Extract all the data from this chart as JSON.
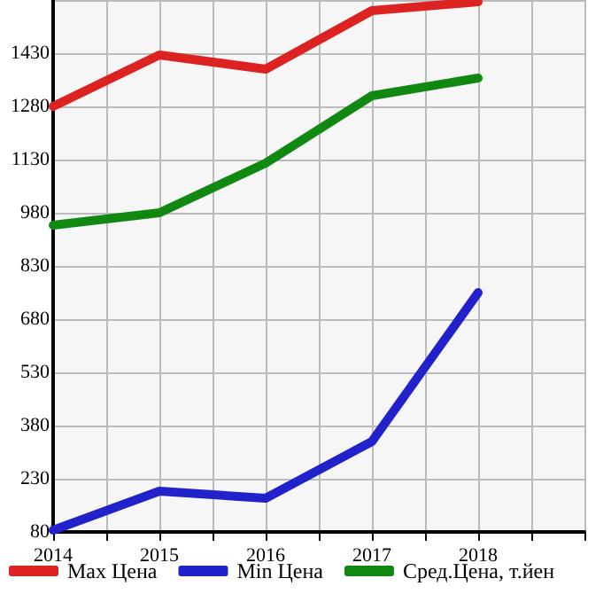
{
  "chart_data": {
    "type": "line",
    "x": [
      2014,
      2015,
      2016,
      2017,
      2018
    ],
    "series": [
      {
        "name": "Max Цена",
        "color": "#dd2222",
        "values": [
          1280,
          1425,
          1385,
          1550,
          1575
        ]
      },
      {
        "name": "Min Цена",
        "color": "#2222cc",
        "values": [
          85,
          195,
          175,
          335,
          755
        ]
      },
      {
        "name": "Сред.Цена, т.йен",
        "color": "#118811",
        "values": [
          945,
          980,
          1120,
          1310,
          1360
        ]
      }
    ],
    "xlim": [
      2014,
      2019
    ],
    "xticks": [
      2014,
      {
        "value": 2014.5,
        "label": null
      },
      2015,
      {
        "value": 2015.5,
        "label": null
      },
      2016,
      {
        "value": 2016.5,
        "label": null
      },
      2017,
      {
        "value": 2017.5,
        "label": null
      },
      2018,
      {
        "value": 2018.5,
        "label": null
      },
      {
        "value": 2019,
        "label": null
      }
    ],
    "ylim": [
      80,
      1580
    ],
    "yticks": [
      80,
      230,
      380,
      530,
      680,
      830,
      980,
      1130,
      1280,
      1430,
      {
        "value": 1580,
        "label": null
      }
    ],
    "grid": true,
    "legend": "bottom",
    "marker": "none",
    "line_style": "solid"
  }
}
